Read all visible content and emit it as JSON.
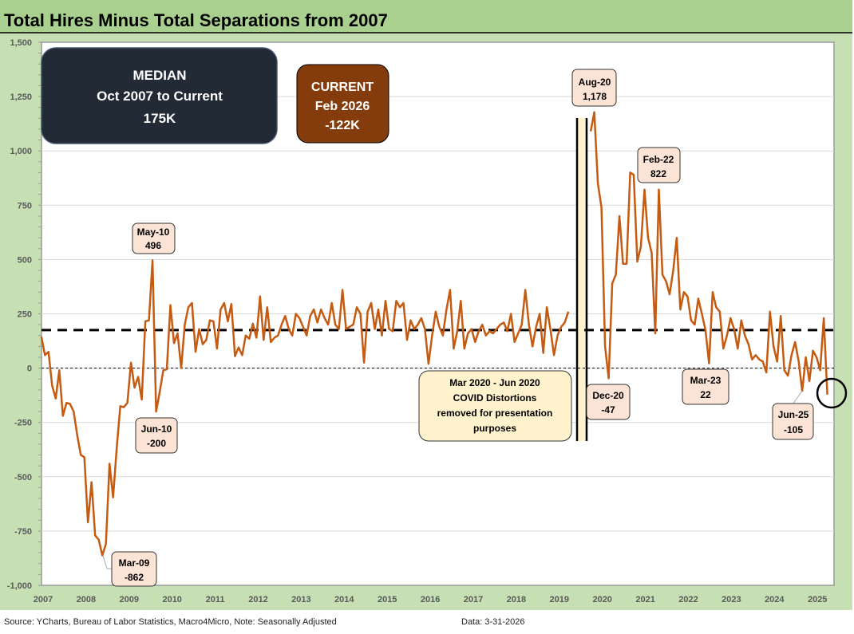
{
  "chart_data": {
    "type": "line",
    "title": "Total Hires Minus Total Separations from 2007",
    "xlabel": "",
    "ylabel": "",
    "ylim": [
      -1000,
      1500
    ],
    "yticks": [
      -1000,
      -750,
      -500,
      -250,
      0,
      250,
      500,
      750,
      1000,
      1250,
      1500
    ],
    "ytick_labels": [
      "-1,000",
      "-750",
      "-500",
      "-250",
      "0",
      "250",
      "500",
      "750",
      "1,000",
      "1,250",
      "1,500"
    ],
    "xticks": [
      "2007",
      "2008",
      "2009",
      "2010",
      "2011",
      "2012",
      "2013",
      "2014",
      "2015",
      "2016",
      "2017",
      "2018",
      "2019",
      "2020",
      "2021",
      "2022",
      "2023",
      "2024",
      "2025"
    ],
    "grid": true,
    "median_value": 175,
    "series": [
      {
        "name": "Hires minus Separations (pre-COVID)",
        "x_start": 2006.96,
        "x_step": 0.08333,
        "color": "#C55A11",
        "values": [
          145,
          60,
          75,
          -80,
          -140,
          -10,
          -220,
          -160,
          -165,
          -200,
          -310,
          -400,
          -410,
          -710,
          -525,
          -770,
          -790,
          -862,
          -810,
          -440,
          -595,
          -370,
          -175,
          -180,
          -160,
          25,
          -90,
          -40,
          -145,
          215,
          220,
          496,
          -200,
          -110,
          -10,
          -5,
          290,
          115,
          160,
          0,
          200,
          280,
          300,
          75,
          180,
          110,
          130,
          220,
          215,
          90,
          270,
          300,
          215,
          295,
          55,
          95,
          60,
          150,
          135,
          205,
          140,
          330,
          130,
          280,
          120,
          140,
          150,
          200,
          240,
          180,
          150,
          250,
          230,
          190,
          150,
          240,
          270,
          210,
          270,
          230,
          200,
          300,
          200,
          180,
          360,
          180,
          190,
          200,
          280,
          250,
          25,
          260,
          300,
          180,
          270,
          150,
          310,
          180,
          170,
          310,
          280,
          300,
          130,
          220,
          180,
          200,
          230,
          180,
          20,
          150,
          260,
          190,
          150,
          270,
          360,
          90,
          170,
          310,
          90,
          160,
          180,
          120,
          170,
          200,
          150,
          170,
          160,
          180,
          200,
          210,
          170,
          250,
          120,
          160,
          200,
          360,
          200,
          100,
          190,
          250,
          70,
          280,
          180,
          60,
          150,
          190,
          210,
          260
        ]
      },
      {
        "name": "Hires minus Separations (post-COVID)",
        "x_start": 2019.73,
        "x_step": 0.08333,
        "color": "#C55A11",
        "values": [
          1090,
          1178,
          850,
          740,
          100,
          -47,
          390,
          430,
          700,
          480,
          480,
          900,
          890,
          490,
          560,
          822,
          600,
          530,
          160,
          822,
          430,
          400,
          340,
          450,
          600,
          270,
          350,
          330,
          220,
          200,
          320,
          250,
          175,
          22,
          350,
          280,
          260,
          90,
          150,
          230,
          180,
          90,
          220,
          150,
          110,
          40,
          60,
          40,
          30,
          -20,
          260,
          100,
          30,
          240,
          -10,
          -35,
          60,
          120,
          30,
          -105,
          50,
          -60,
          80,
          50,
          -10,
          230,
          -122
        ]
      }
    ],
    "annotations": {
      "may10": {
        "label": "May-10",
        "value": "496"
      },
      "jun10": {
        "label": "Jun-10",
        "value": "-200"
      },
      "mar09": {
        "label": "Mar-09",
        "value": "-862"
      },
      "aug20": {
        "label": "Aug-20",
        "value": "1,178"
      },
      "feb22": {
        "label": "Feb-22",
        "value": "822"
      },
      "dec20": {
        "label": "Dec-20",
        "value": "-47"
      },
      "mar23": {
        "label": "Mar-23",
        "value": "22"
      },
      "jun25": {
        "label": "Jun-25",
        "value": "-105"
      }
    },
    "median_box": {
      "line1": "MEDIAN",
      "line2": "Oct 2007 to Current",
      "line3": "175K"
    },
    "current_box": {
      "line1": "CURRENT",
      "line2": "Feb 2026",
      "line3": "-122K"
    },
    "covid_note": {
      "line1": "Mar 2020 - Jun 2020",
      "line2": "COVID Distortions",
      "line3": "removed for presentation",
      "line4": "purposes"
    }
  },
  "footer": {
    "source": "Source: YCharts, Bureau of Labor Statistics, Macro4Micro, Note: Seasonally Adjusted",
    "date": "Data: 3-31-2026"
  },
  "colors": {
    "line": "#C55A11",
    "background": "#C6E0B4",
    "title_band": "#A9D08E",
    "median_box": "#222A35",
    "current_box": "#843C0C",
    "callout": "#FBE3D6",
    "covid_box": "#FFF2CC"
  }
}
